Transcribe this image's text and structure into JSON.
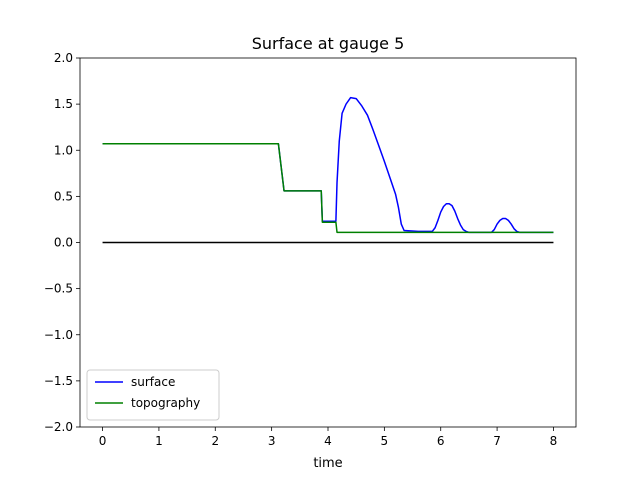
{
  "chart_data": {
    "type": "line",
    "title": "Surface at gauge 5",
    "xlabel": "time",
    "ylabel": "",
    "xlim": [
      -0.4,
      8.4
    ],
    "ylim": [
      -2.0,
      2.0
    ],
    "xticks": [
      0,
      1,
      2,
      3,
      4,
      5,
      6,
      7,
      8
    ],
    "xtick_labels": [
      "0",
      "1",
      "2",
      "3",
      "4",
      "5",
      "6",
      "7",
      "8"
    ],
    "yticks": [
      -2.0,
      -1.5,
      -1.0,
      -0.5,
      0.0,
      0.5,
      1.0,
      1.5,
      2.0
    ],
    "ytick_labels": [
      "−2.0",
      "−1.5",
      "−1.0",
      "−0.5",
      "0.0",
      "0.5",
      "1.0",
      "1.5",
      "2.0"
    ],
    "grid": false,
    "legend_position": "lower-left",
    "series": [
      {
        "name": "surface",
        "color": "#0000ff",
        "x": [
          0,
          3.12,
          3.22,
          3.88,
          3.9,
          4.14,
          4.16,
          4.2,
          4.25,
          4.32,
          4.4,
          4.5,
          4.6,
          4.7,
          4.8,
          4.9,
          5.0,
          5.1,
          5.2,
          5.25,
          5.3,
          5.35,
          5.6,
          5.85,
          5.9,
          5.95,
          6.0,
          6.05,
          6.1,
          6.15,
          6.2,
          6.25,
          6.3,
          6.35,
          6.4,
          6.45,
          6.5,
          6.55,
          6.75,
          6.9,
          6.95,
          7.0,
          7.05,
          7.1,
          7.15,
          7.2,
          7.25,
          7.3,
          7.35,
          7.4,
          7.45,
          7.6,
          8.0
        ],
        "y": [
          1.07,
          1.07,
          0.56,
          0.56,
          0.23,
          0.23,
          0.65,
          1.1,
          1.4,
          1.5,
          1.57,
          1.56,
          1.48,
          1.38,
          1.22,
          1.05,
          0.88,
          0.7,
          0.52,
          0.38,
          0.2,
          0.13,
          0.12,
          0.12,
          0.16,
          0.24,
          0.33,
          0.39,
          0.42,
          0.42,
          0.4,
          0.34,
          0.26,
          0.19,
          0.14,
          0.12,
          0.11,
          0.11,
          0.11,
          0.11,
          0.14,
          0.2,
          0.24,
          0.26,
          0.26,
          0.24,
          0.2,
          0.15,
          0.12,
          0.11,
          0.11,
          0.11,
          0.11
        ]
      },
      {
        "name": "topography",
        "color": "#008000",
        "x": [
          0,
          3.12,
          3.22,
          3.88,
          3.9,
          4.14,
          4.16,
          8.0
        ],
        "y": [
          1.07,
          1.07,
          0.56,
          0.56,
          0.22,
          0.22,
          0.11,
          0.11
        ]
      },
      {
        "name": "",
        "color": "#000000",
        "x": [
          0,
          8.0
        ],
        "y": [
          0,
          0
        ]
      }
    ]
  }
}
